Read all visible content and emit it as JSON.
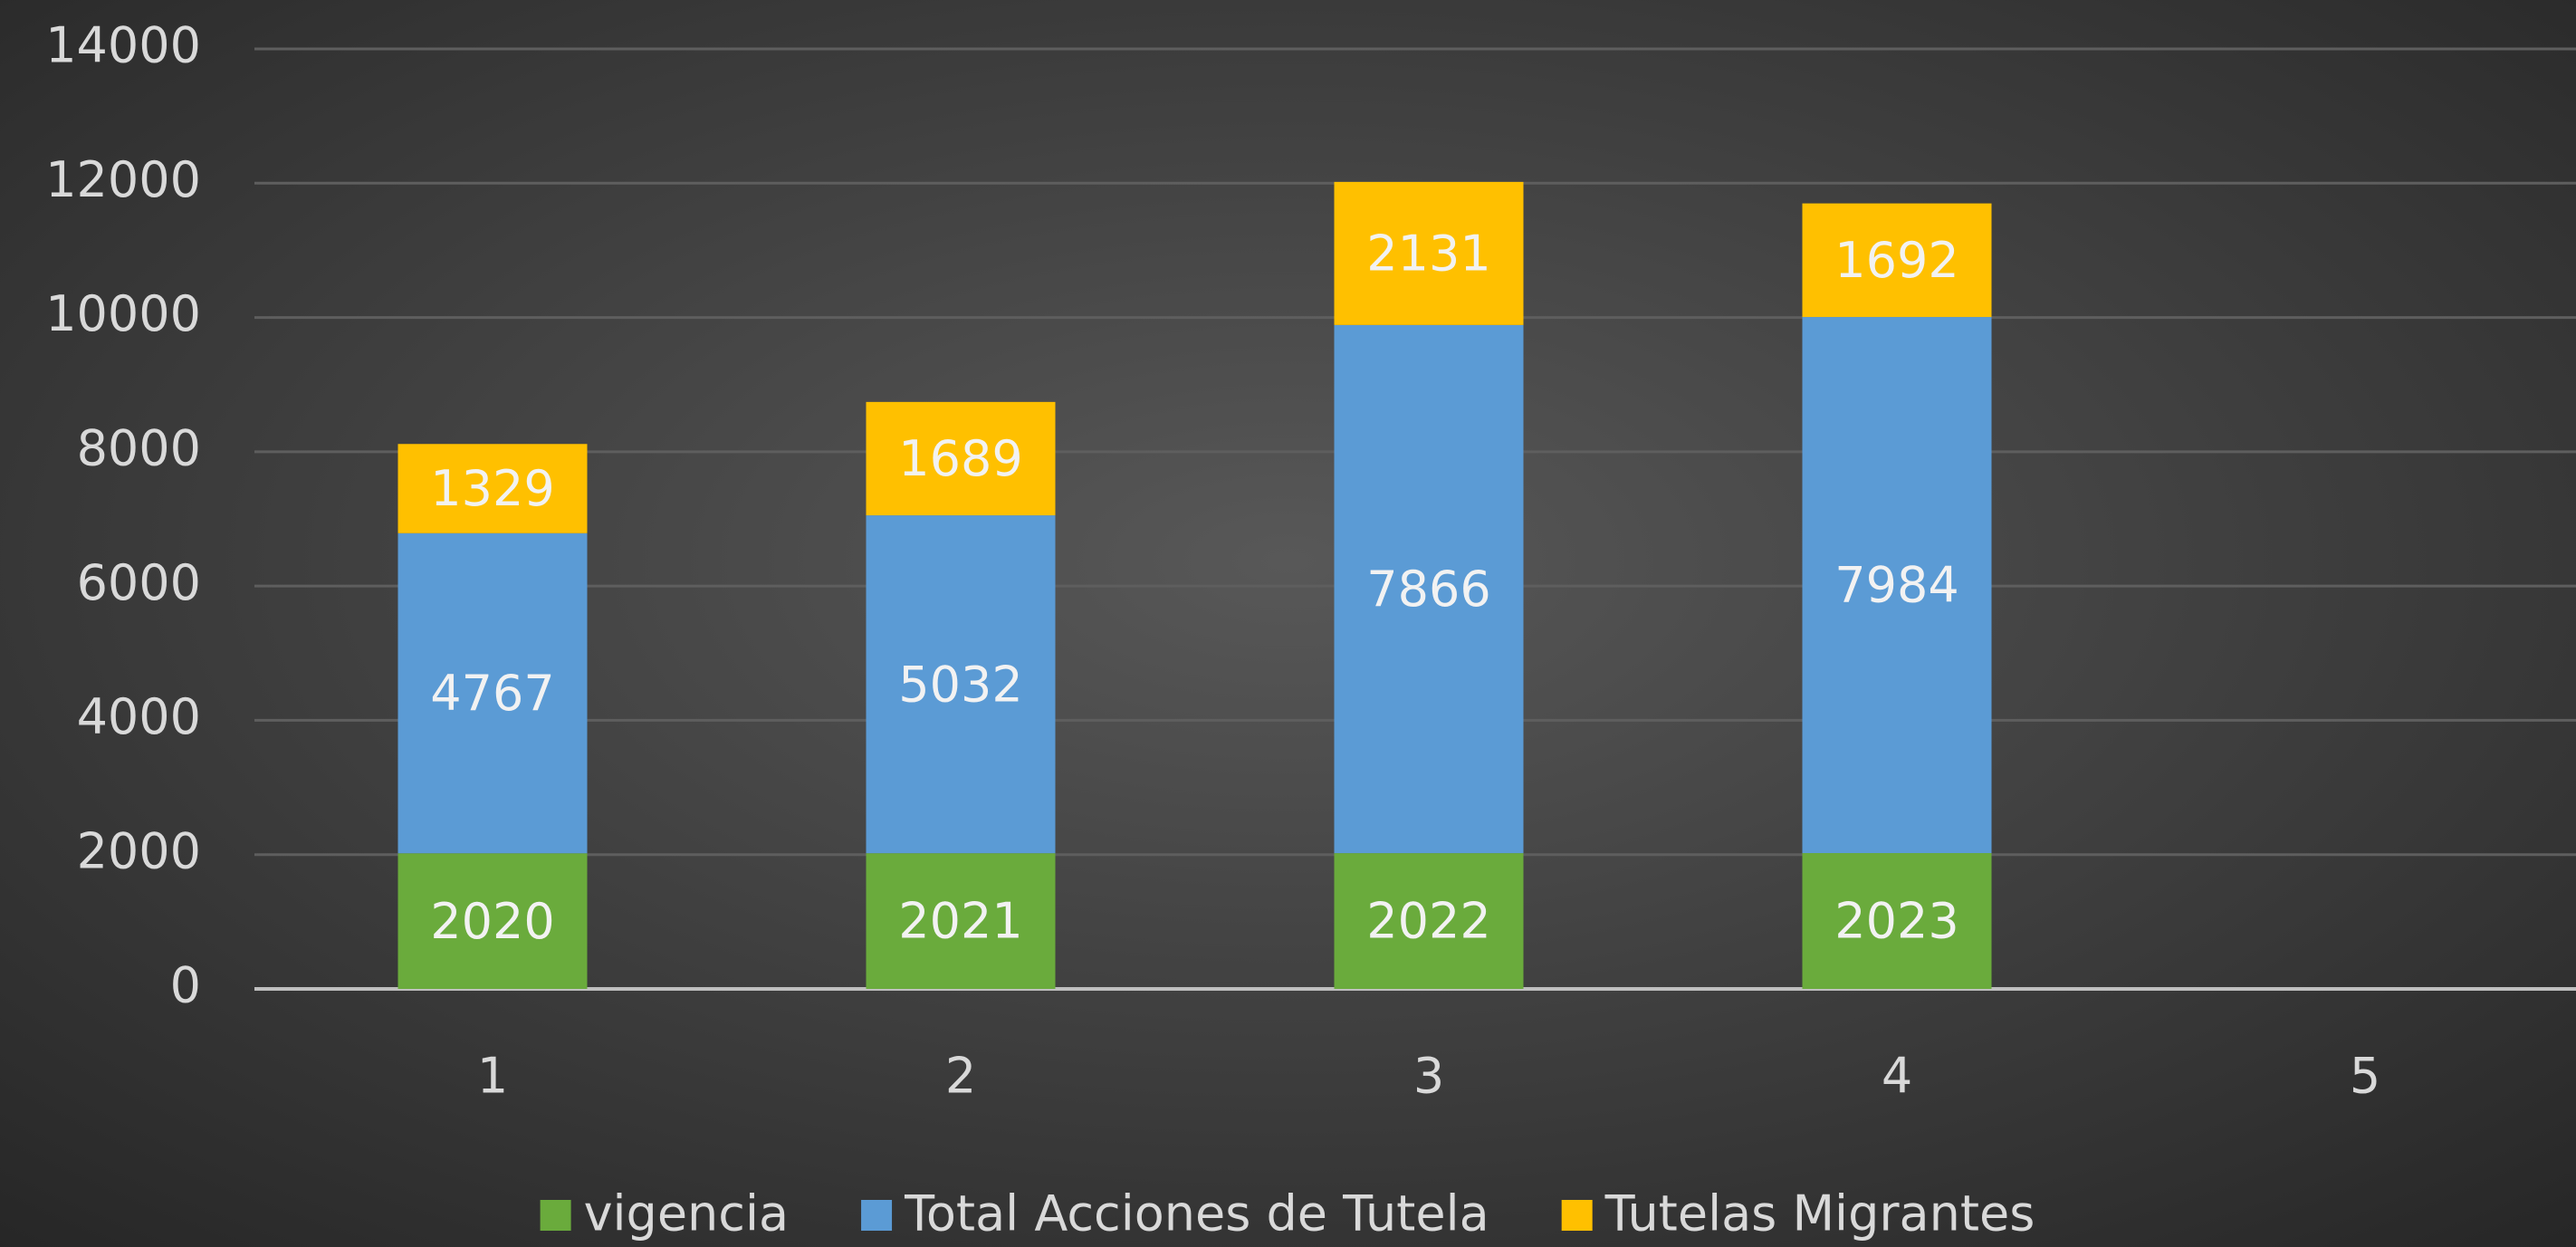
{
  "chart_data": {
    "type": "stacked_bar",
    "categories": [
      "1",
      "2",
      "3",
      "4",
      "5"
    ],
    "series": [
      {
        "name": "vigencia",
        "color": "#6aab3c",
        "values": [
          2020,
          2021,
          2022,
          2023,
          null
        ]
      },
      {
        "name": "Total Acciones de Tutela",
        "color": "#5b9bd5",
        "values": [
          4767,
          5032,
          7866,
          7984,
          null
        ]
      },
      {
        "name": "Tutelas Migrantes",
        "color": "#ffc000",
        "values": [
          1329,
          1689,
          2131,
          1692,
          null
        ]
      }
    ],
    "ylim": [
      0,
      14000
    ],
    "yticks": [
      0,
      2000,
      4000,
      6000,
      8000,
      10000,
      12000,
      14000
    ],
    "grid": true,
    "legend": "bottom"
  }
}
